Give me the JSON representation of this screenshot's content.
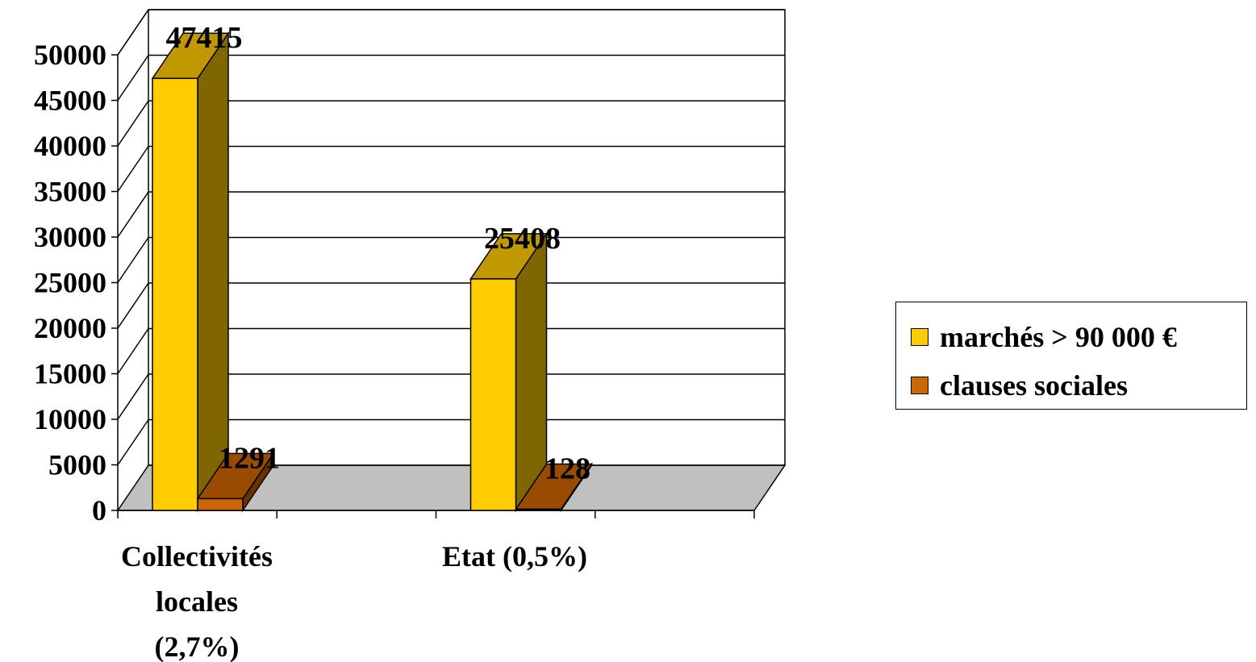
{
  "chart_data": {
    "type": "bar",
    "categories": [
      "Collectivités locales (2,7%)",
      "Etat (0,5%)"
    ],
    "category_label_lines": [
      [
        "Collectivités",
        "locales",
        "(2,7%)"
      ],
      [
        "Etat (0,5%)"
      ]
    ],
    "series": [
      {
        "name": "marchés > 90 000 €",
        "values": [
          47415,
          25408
        ],
        "color": "#FFCC00",
        "side_color": "#806600",
        "top_color": "#C09900"
      },
      {
        "name": "clauses sociales",
        "values": [
          1291,
          128
        ],
        "color": "#CC6600",
        "side_color": "#663300",
        "top_color": "#994C00"
      }
    ],
    "data_labels": [
      "47415",
      "25408",
      "1291",
      "128"
    ],
    "ylim": [
      0,
      50000
    ],
    "yticks": [
      0,
      5000,
      10000,
      15000,
      20000,
      25000,
      30000,
      35000,
      40000,
      45000,
      50000
    ],
    "ytick_labels": [
      "0",
      "5000",
      "10000",
      "15000",
      "20000",
      "25000",
      "30000",
      "35000",
      "40000",
      "45000",
      "50000"
    ],
    "grid": true,
    "legend": "right",
    "floor_color": "#C0C0C0",
    "title": "",
    "xlabel": "",
    "ylabel": ""
  }
}
